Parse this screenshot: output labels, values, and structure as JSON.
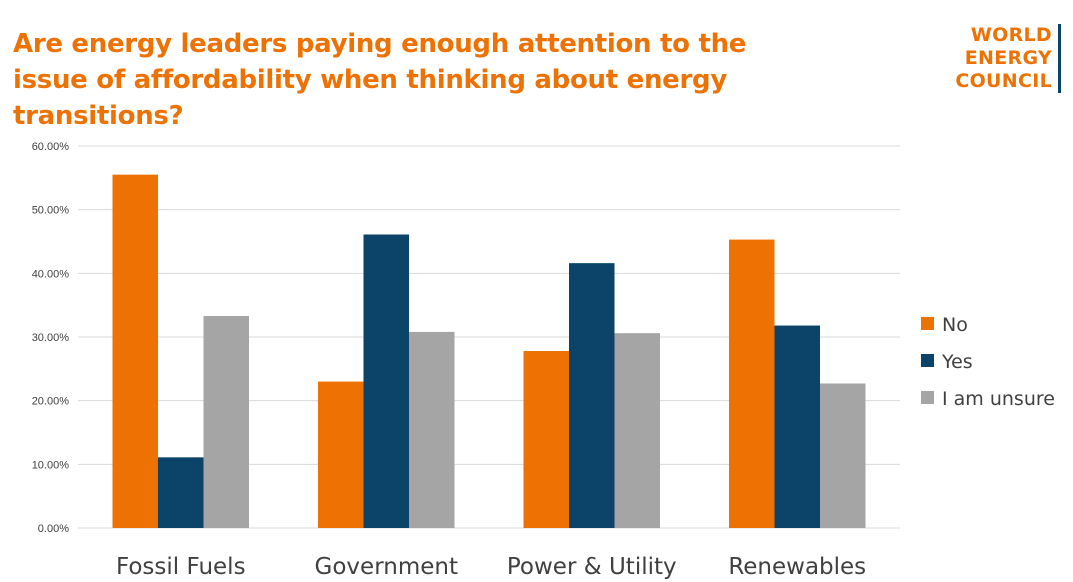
{
  "logo": {
    "lines": [
      "WORLD",
      "ENERGY",
      "COUNCIL"
    ],
    "color": "#ED7203",
    "bar_color": "#0B4468"
  },
  "colors": {
    "title": "#ED7203",
    "gridline": "#D9D9D9",
    "axis_text": "#404040"
  },
  "chart_data": {
    "type": "bar",
    "title": "Are energy leaders paying enough attention to the issue of affordability when thinking about energy transitions?",
    "categories": [
      "Fossil Fuels",
      "Government",
      "Power & Utility",
      "Renewables"
    ],
    "series": [
      {
        "name": "No",
        "color": "#ED7203",
        "values": [
          55.5,
          23.0,
          27.8,
          45.3
        ]
      },
      {
        "name": "Yes",
        "color": "#0B4468",
        "values": [
          11.1,
          46.1,
          41.6,
          31.8
        ]
      },
      {
        "name": "I am unsure",
        "color": "#A5A5A5",
        "values": [
          33.3,
          30.8,
          30.6,
          22.7
        ]
      }
    ],
    "ylim": [
      0,
      60
    ],
    "yticks": [
      0,
      10,
      20,
      30,
      40,
      50,
      60
    ],
    "ytick_labels": [
      "0.00%",
      "10.00%",
      "20.00%",
      "30.00%",
      "40.00%",
      "50.00%",
      "60.00%"
    ],
    "xlabel": "",
    "ylabel": "",
    "grid": true,
    "legend_position": "right"
  }
}
